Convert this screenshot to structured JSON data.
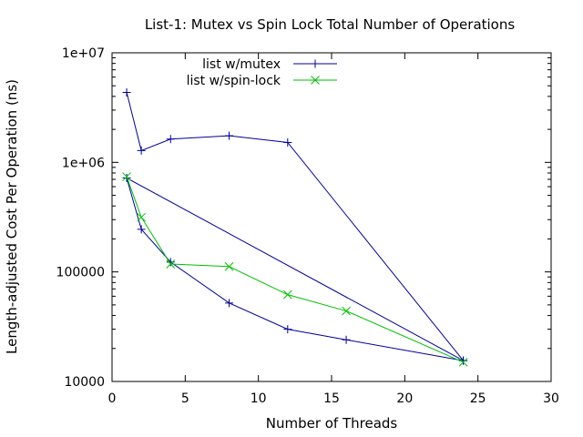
{
  "chart_data": {
    "type": "line",
    "title": "List-1: Mutex vs Spin Lock Total Number of Operations",
    "xlabel": "Number of Threads",
    "ylabel": "Length-adjusted Cost Per Operation (ns)",
    "xlim": [
      0,
      30
    ],
    "ylim": [
      10000,
      10000000
    ],
    "yscale": "log",
    "xticks": [
      0,
      5,
      10,
      15,
      20,
      25,
      30
    ],
    "xtick_labels": [
      "0",
      "5",
      "10",
      "15",
      "20",
      "25",
      "30"
    ],
    "yticks": [
      10000,
      100000,
      1000000,
      10000000
    ],
    "ytick_labels": [
      "10000",
      "100000",
      "1e+06",
      "1e+07"
    ],
    "grid": false,
    "legend_position": "top-left",
    "series": [
      {
        "name": "list w/mutex",
        "color": "#0000a0",
        "marker": "plus",
        "x": [
          1,
          2,
          4,
          8,
          12,
          24,
          1,
          2,
          4,
          8,
          12,
          16,
          24
        ],
        "y": [
          4350000,
          1280000,
          1630000,
          1750000,
          1520000,
          15500,
          720000,
          245000,
          123000,
          52000,
          30000,
          24000,
          15500
        ]
      },
      {
        "name": "list w/spin-lock",
        "color": "#00c000",
        "marker": "x",
        "x": [
          1,
          2,
          4,
          8,
          12,
          16,
          24
        ],
        "y": [
          740000,
          315000,
          118000,
          112000,
          62000,
          44000,
          15000
        ]
      }
    ]
  }
}
